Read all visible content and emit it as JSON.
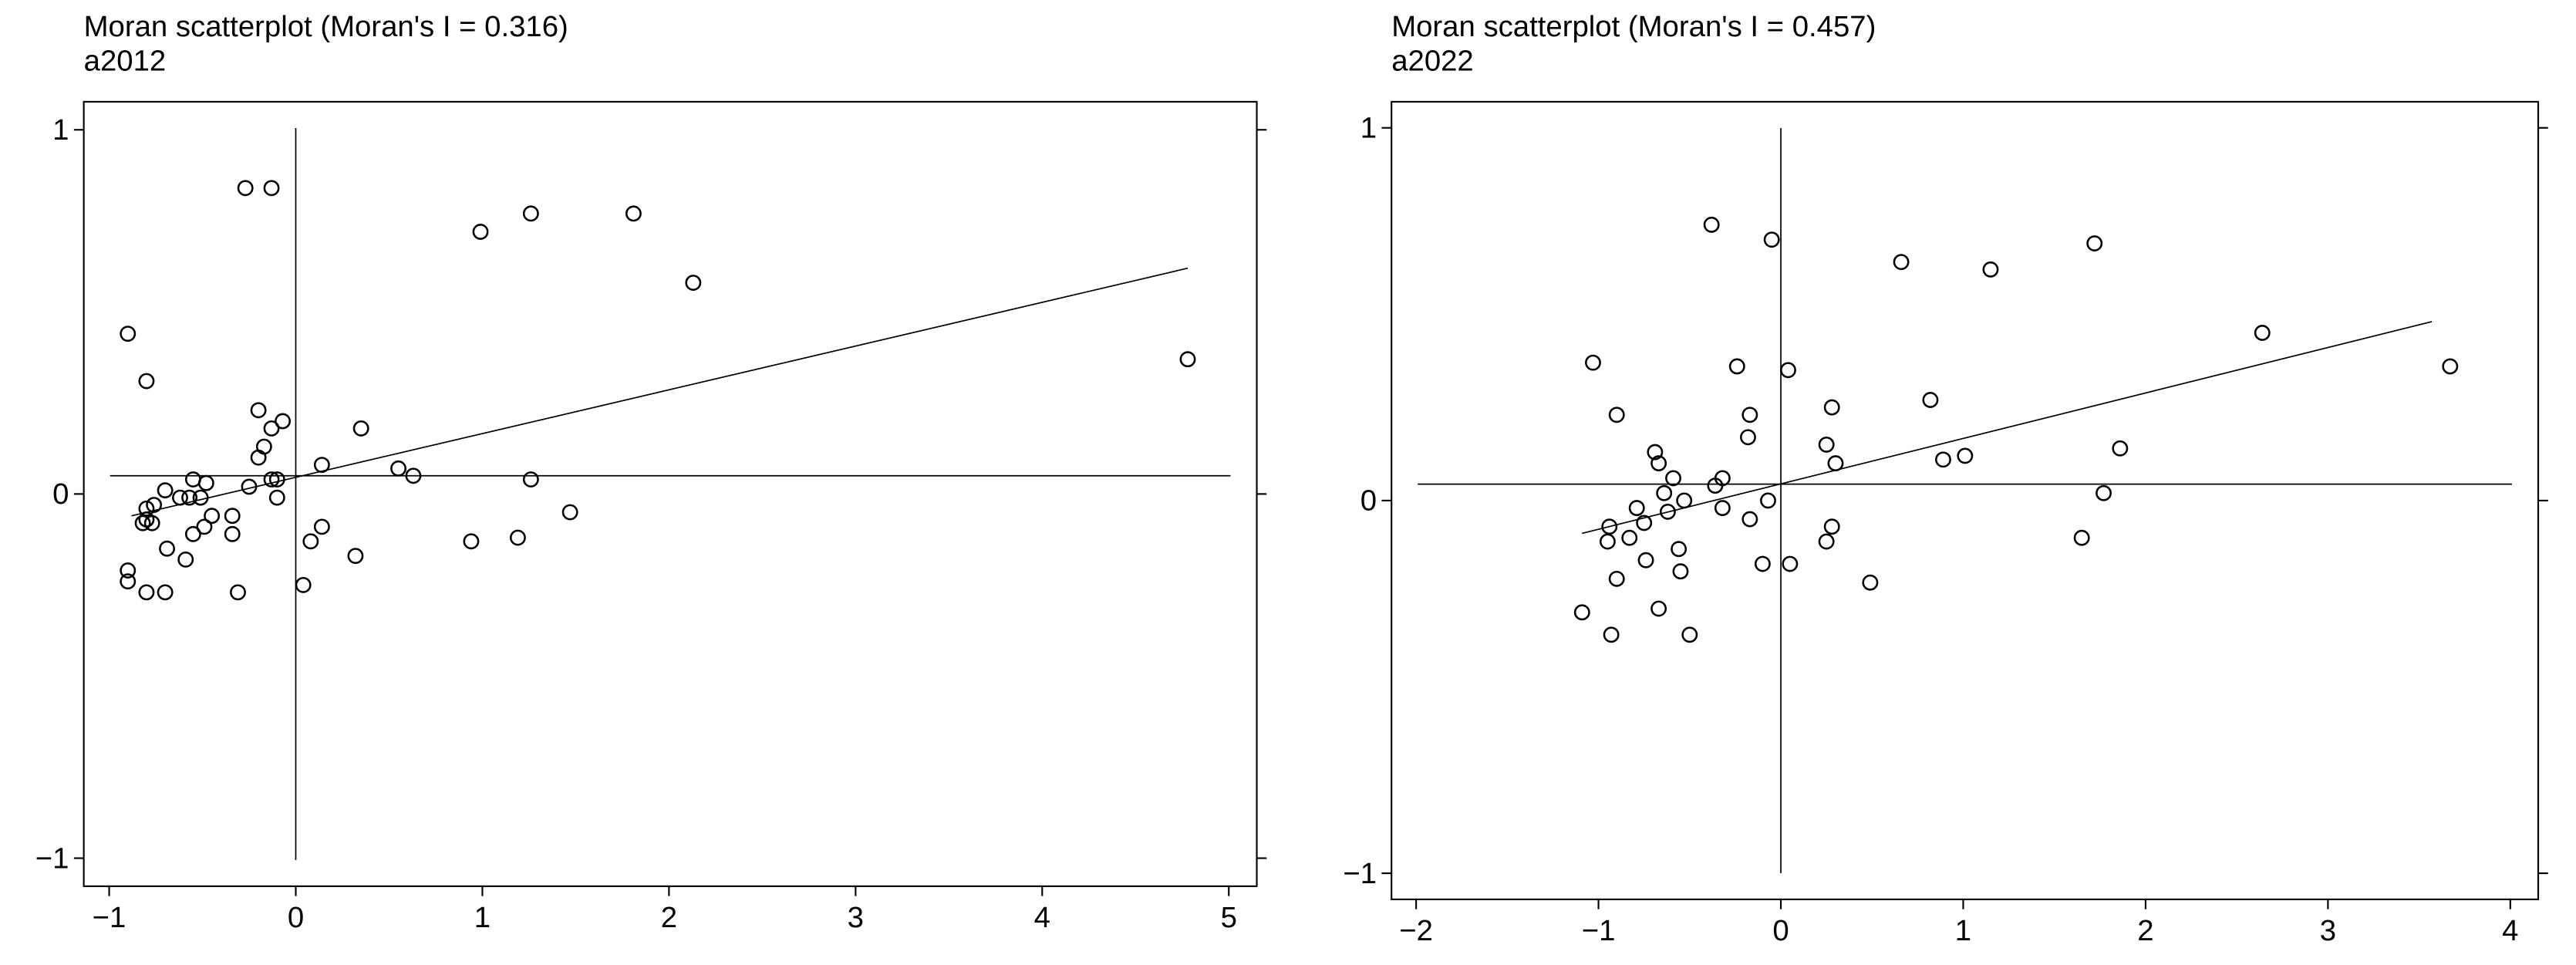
{
  "chart_data": [
    {
      "type": "scatter",
      "title": "Moran scatterplot (Moran's I = 0.316)",
      "subtitle": "a2012",
      "color": "#000000",
      "x": [
        -0.27,
        -0.13,
        -0.9,
        -0.8,
        0.99,
        1.26,
        1.81,
        2.13,
        4.78,
        -0.2,
        -0.07,
        -0.13,
        0.35,
        -0.17,
        -0.2,
        0.14,
        0.55,
        0.63,
        1.26,
        -0.13,
        -0.1,
        -0.25,
        -0.1,
        -0.55,
        -0.48,
        -0.7,
        -0.62,
        -0.57,
        -0.51,
        -0.76,
        -0.8,
        -0.8,
        -0.77,
        -0.82,
        -0.45,
        -0.34,
        -0.49,
        -0.55,
        -0.34,
        0.14,
        0.08,
        0.94,
        1.19,
        1.47,
        0.32,
        -0.69,
        -0.59,
        0.04,
        -0.9,
        -0.9,
        -0.8,
        -0.7,
        -0.31
      ],
      "y": [
        0.84,
        0.84,
        0.44,
        0.31,
        0.72,
        0.77,
        0.77,
        0.58,
        0.37,
        0.23,
        0.2,
        0.18,
        0.18,
        0.13,
        0.1,
        0.08,
        0.07,
        0.05,
        0.04,
        0.04,
        0.04,
        0.02,
        -0.01,
        0.04,
        0.03,
        0.01,
        -0.01,
        -0.01,
        -0.01,
        -0.03,
        -0.04,
        -0.07,
        -0.08,
        -0.08,
        -0.06,
        -0.06,
        -0.09,
        -0.11,
        -0.11,
        -0.09,
        -0.13,
        -0.13,
        -0.12,
        -0.05,
        -0.17,
        -0.15,
        -0.18,
        -0.25,
        -0.21,
        -0.24,
        -0.27,
        -0.27,
        -0.27
      ],
      "fit_line": {
        "x": [
          -0.88,
          4.78
        ],
        "y": [
          -0.06,
          0.62
        ]
      },
      "hline": 0.05,
      "vline": 0,
      "xlim": [
        -1.136,
        5.15
      ],
      "ylim": [
        -1.077,
        1.077
      ],
      "xticks": [
        {
          "value": -1,
          "label": "−1"
        },
        0,
        1,
        2,
        3,
        4,
        5
      ],
      "yticks": [
        {
          "value": -1,
          "label": "−1"
        },
        0,
        1
      ]
    },
    {
      "type": "scatter",
      "title": "Moran scatterplot (Moran's I = 0.457)",
      "subtitle": "a2022",
      "color": "#000000",
      "x": [
        -0.38,
        -0.05,
        0.66,
        1.15,
        1.72,
        2.64,
        3.67,
        -1.03,
        -0.24,
        0.04,
        -0.9,
        -0.17,
        0.28,
        0.82,
        -0.18,
        -0.69,
        -0.67,
        -0.59,
        0.25,
        1.86,
        1.01,
        0.89,
        0.3,
        -0.36,
        -0.32,
        -0.64,
        -0.07,
        -0.53,
        -0.79,
        -0.62,
        -0.32,
        -0.17,
        -0.94,
        -0.75,
        -0.83,
        -0.95,
        0.28,
        0.25,
        1.77,
        1.65,
        -0.74,
        -0.56,
        -0.55,
        -0.1,
        0.05,
        0.49,
        -0.9,
        -1.09,
        -0.67,
        -0.93,
        -0.5
      ],
      "y": [
        0.74,
        0.7,
        0.64,
        0.62,
        0.69,
        0.45,
        0.36,
        0.37,
        0.36,
        0.35,
        0.23,
        0.23,
        0.25,
        0.27,
        0.17,
        0.13,
        0.1,
        0.06,
        0.15,
        0.14,
        0.12,
        0.11,
        0.1,
        0.04,
        0.06,
        0.02,
        0.0,
        0.0,
        -0.02,
        -0.03,
        -0.02,
        -0.05,
        -0.07,
        -0.06,
        -0.1,
        -0.11,
        -0.07,
        -0.11,
        0.02,
        -0.1,
        -0.16,
        -0.13,
        -0.19,
        -0.17,
        -0.17,
        -0.22,
        -0.21,
        -0.3,
        -0.29,
        -0.36,
        -0.36
      ],
      "fit_line": {
        "x": [
          -1.09,
          3.57
        ],
        "y": [
          -0.088,
          0.48
        ]
      },
      "hline": 0.044,
      "vline": 0,
      "xlim": [
        -2.135,
        4.153
      ],
      "ylim": [
        -1.07,
        1.07
      ],
      "xticks": [
        {
          "value": -2,
          "label": "−2"
        },
        {
          "value": -1,
          "label": "−1"
        },
        0,
        1,
        2,
        3,
        4
      ],
      "yticks": [
        {
          "value": -1,
          "label": "−1"
        },
        0,
        1
      ]
    }
  ]
}
